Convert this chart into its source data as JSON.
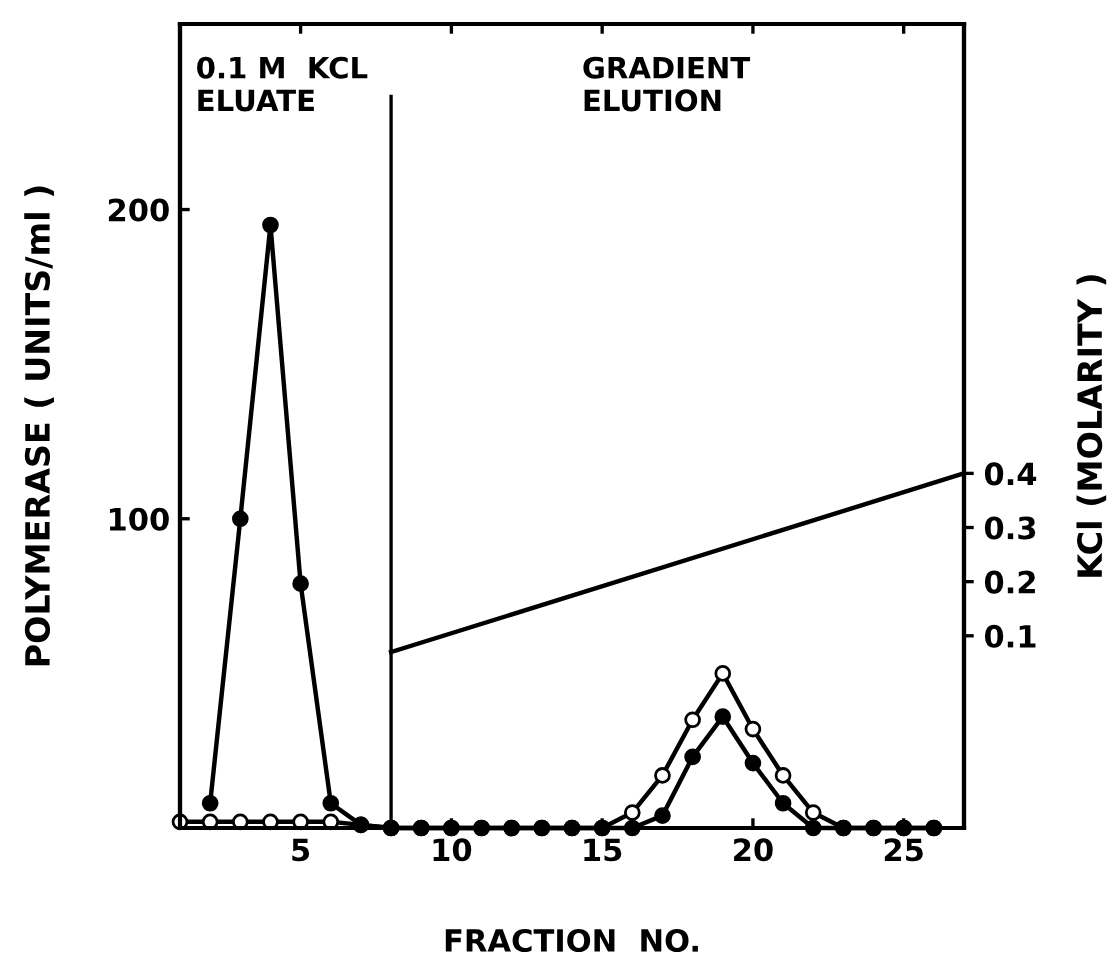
{
  "chart_data": {
    "type": "line",
    "xlabel": "FRACTION  NO.",
    "ylabel": "POLYMERASE ( UNITS/ml )",
    "y2label": "KCl (MOLARITY )",
    "xlim": [
      1,
      27
    ],
    "xticks": [
      5,
      10,
      15,
      20,
      25
    ],
    "ylim": [
      0,
      260
    ],
    "yticks": [
      100,
      200
    ],
    "y2lim": [
      -0.255,
      1.23
    ],
    "y2ticks": [
      0.1,
      0.2,
      0.3,
      0.4
    ],
    "marker": "circle",
    "grid": false,
    "legend": false,
    "ref_lines": [
      {
        "axis": "x",
        "value": 8,
        "label": null,
        "color": "#000000",
        "line_style": "solid"
      }
    ],
    "annotations": [
      "0.1 M  KCL\nELUATE",
      "GRADIENT\nELUTION"
    ],
    "series": [
      {
        "color": "#000000",
        "x": [
          1,
          2,
          3,
          4,
          5,
          6,
          7,
          8,
          9,
          10,
          11,
          12,
          13,
          14,
          15,
          16,
          17,
          18,
          19,
          20,
          21,
          22,
          23,
          24,
          25,
          26
        ],
        "values": [
          2,
          2,
          2,
          2,
          2,
          2,
          1,
          0,
          0,
          0,
          0,
          0,
          0,
          0,
          0,
          5,
          17,
          35,
          50,
          32,
          17,
          5,
          0,
          0,
          0,
          0
        ]
      },
      {
        "color": "#000000",
        "x": [
          2,
          3,
          4,
          5,
          6,
          7,
          8,
          9,
          10,
          11,
          12,
          13,
          14,
          15,
          16,
          17,
          18,
          19,
          20,
          21,
          22,
          23,
          24,
          25,
          26
        ],
        "values": [
          8,
          100,
          195,
          79,
          8,
          1,
          0,
          0,
          0,
          0,
          0,
          0,
          0,
          0,
          0,
          4,
          23,
          36,
          21,
          8,
          0,
          0,
          0,
          0,
          0
        ]
      },
      {
        "type": "line",
        "axis": "y2",
        "color": "#000000",
        "marker": "none",
        "x": [
          8,
          27
        ],
        "values": [
          0.07,
          0.4
        ]
      }
    ]
  }
}
